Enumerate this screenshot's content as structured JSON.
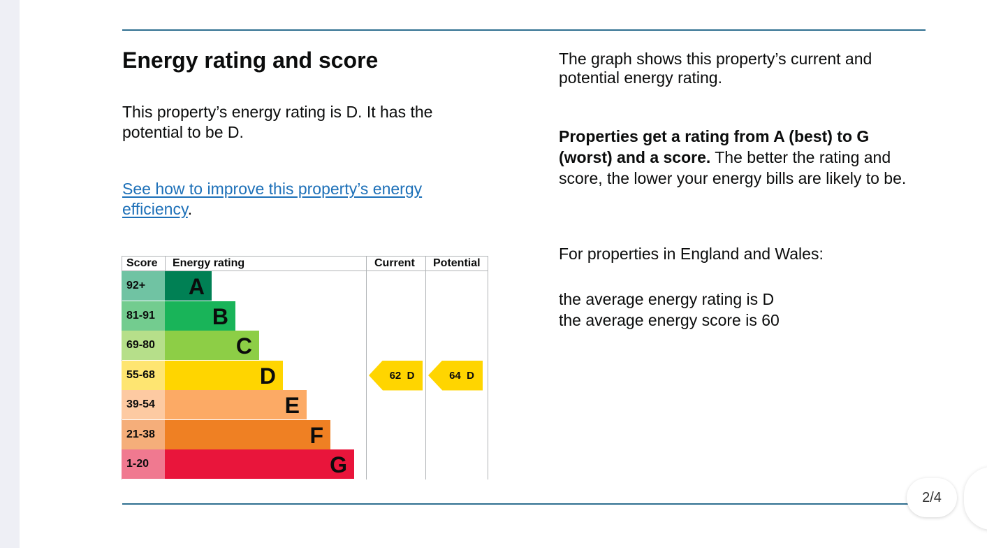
{
  "heading": "Energy rating and score",
  "rating_text": "This property’s energy rating is D. It has the potential to be D.",
  "improve_link": "See how to improve this property’s energy efficiency",
  "improve_link_suffix": ".",
  "right": {
    "graph_intro": "The graph shows this property’s current and potential energy rating.",
    "bold_text": "Properties get a rating from A (best) to G (worst) and a score.",
    "normal_text": " The better the rating and score, the lower your energy bills are likely to be.",
    "region_text": "For properties in England and Wales:",
    "average_rating": "the average energy rating is D",
    "average_score": "the average energy score is 60"
  },
  "chart_data": {
    "type": "table",
    "headers": [
      "Score",
      "Energy rating",
      "Current",
      "Potential"
    ],
    "bands": [
      {
        "letter": "A",
        "range": "92+",
        "band_color": "#008054",
        "score_color": "#70c3a3"
      },
      {
        "letter": "B",
        "range": "81-91",
        "band_color": "#19b459",
        "score_color": "#73cc8f"
      },
      {
        "letter": "C",
        "range": "69-80",
        "band_color": "#8dce46",
        "score_color": "#b6df8a"
      },
      {
        "letter": "D",
        "range": "55-68",
        "band_color": "#ffd500",
        "score_color": "#fee571"
      },
      {
        "letter": "E",
        "range": "39-54",
        "band_color": "#fcaa65",
        "score_color": "#fdcaa2"
      },
      {
        "letter": "F",
        "range": "21-38",
        "band_color": "#ef8023",
        "score_color": "#f5ae7a"
      },
      {
        "letter": "G",
        "range": "1-20",
        "band_color": "#e9153b",
        "score_color": "#f07990"
      }
    ],
    "current": {
      "score": 62,
      "letter": "D",
      "label": "62  D",
      "color": "#ffd500"
    },
    "potential": {
      "score": 64,
      "letter": "D",
      "label": "64  D",
      "color": "#ffd500"
    }
  },
  "pager": "2/4"
}
